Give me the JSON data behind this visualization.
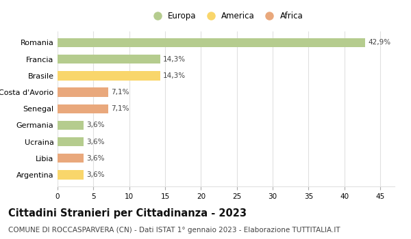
{
  "categories": [
    "Romania",
    "Francia",
    "Brasile",
    "Costa d'Avorio",
    "Senegal",
    "Germania",
    "Ucraina",
    "Libia",
    "Argentina"
  ],
  "values": [
    42.9,
    14.3,
    14.3,
    7.1,
    7.1,
    3.6,
    3.6,
    3.6,
    3.6
  ],
  "labels": [
    "42,9%",
    "14,3%",
    "14,3%",
    "7,1%",
    "7,1%",
    "3,6%",
    "3,6%",
    "3,6%",
    "3,6%"
  ],
  "colors": [
    "#b5cc8e",
    "#b5cc8e",
    "#f9d66b",
    "#e9a87c",
    "#e9a87c",
    "#b5cc8e",
    "#b5cc8e",
    "#e9a87c",
    "#f9d66b"
  ],
  "legend_labels": [
    "Europa",
    "America",
    "Africa"
  ],
  "legend_colors": [
    "#b5cc8e",
    "#f9d66b",
    "#e9a87c"
  ],
  "xlim": [
    0,
    47
  ],
  "xticks": [
    0,
    5,
    10,
    15,
    20,
    25,
    30,
    35,
    40,
    45
  ],
  "title": "Cittadini Stranieri per Cittadinanza - 2023",
  "subtitle": "COMUNE DI ROCCASPARVERA (CN) - Dati ISTAT 1° gennaio 2023 - Elaborazione TUTTITALIA.IT",
  "title_fontsize": 10.5,
  "subtitle_fontsize": 7.5,
  "background_color": "#ffffff",
  "grid_color": "#e0e0e0",
  "bar_height": 0.55
}
